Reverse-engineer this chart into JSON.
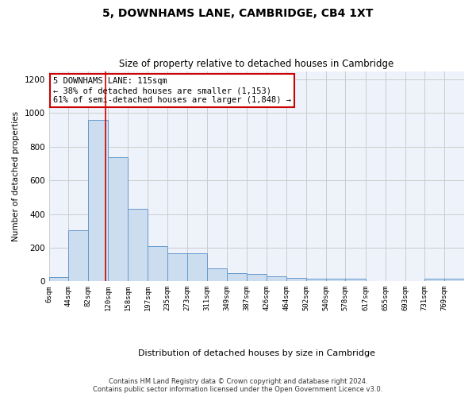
{
  "title": "5, DOWNHAMS LANE, CAMBRIDGE, CB4 1XT",
  "subtitle": "Size of property relative to detached houses in Cambridge",
  "xlabel": "Distribution of detached houses by size in Cambridge",
  "ylabel": "Number of detached properties",
  "bar_color": "#ccddf0",
  "bar_edge_color": "#6699cc",
  "grid_color": "#cccccc",
  "background_color": "#eef2fb",
  "annotation_text": "5 DOWNHAMS LANE: 115sqm\n← 38% of detached houses are smaller (1,153)\n61% of semi-detached houses are larger (1,848) →",
  "annotation_box_color": "#ffffff",
  "annotation_edge_color": "#cc0000",
  "vline_x": 115,
  "vline_color": "#cc0000",
  "footer_line1": "Contains HM Land Registry data © Crown copyright and database right 2024.",
  "footer_line2": "Contains public sector information licensed under the Open Government Licence v3.0.",
  "categories": [
    "6sqm",
    "44sqm",
    "82sqm",
    "120sqm",
    "158sqm",
    "197sqm",
    "235sqm",
    "273sqm",
    "311sqm",
    "349sqm",
    "387sqm",
    "426sqm",
    "464sqm",
    "502sqm",
    "540sqm",
    "578sqm",
    "617sqm",
    "655sqm",
    "693sqm",
    "731sqm",
    "769sqm"
  ],
  "bin_edges": [
    6,
    44,
    82,
    120,
    158,
    197,
    235,
    273,
    311,
    349,
    387,
    426,
    464,
    502,
    540,
    578,
    617,
    655,
    693,
    731,
    769,
    807
  ],
  "values": [
    25,
    305,
    960,
    740,
    430,
    210,
    165,
    165,
    75,
    48,
    45,
    30,
    18,
    15,
    15,
    15,
    0,
    0,
    0,
    14,
    15
  ],
  "ylim": [
    0,
    1250
  ],
  "yticks": [
    0,
    200,
    400,
    600,
    800,
    1000,
    1200
  ]
}
